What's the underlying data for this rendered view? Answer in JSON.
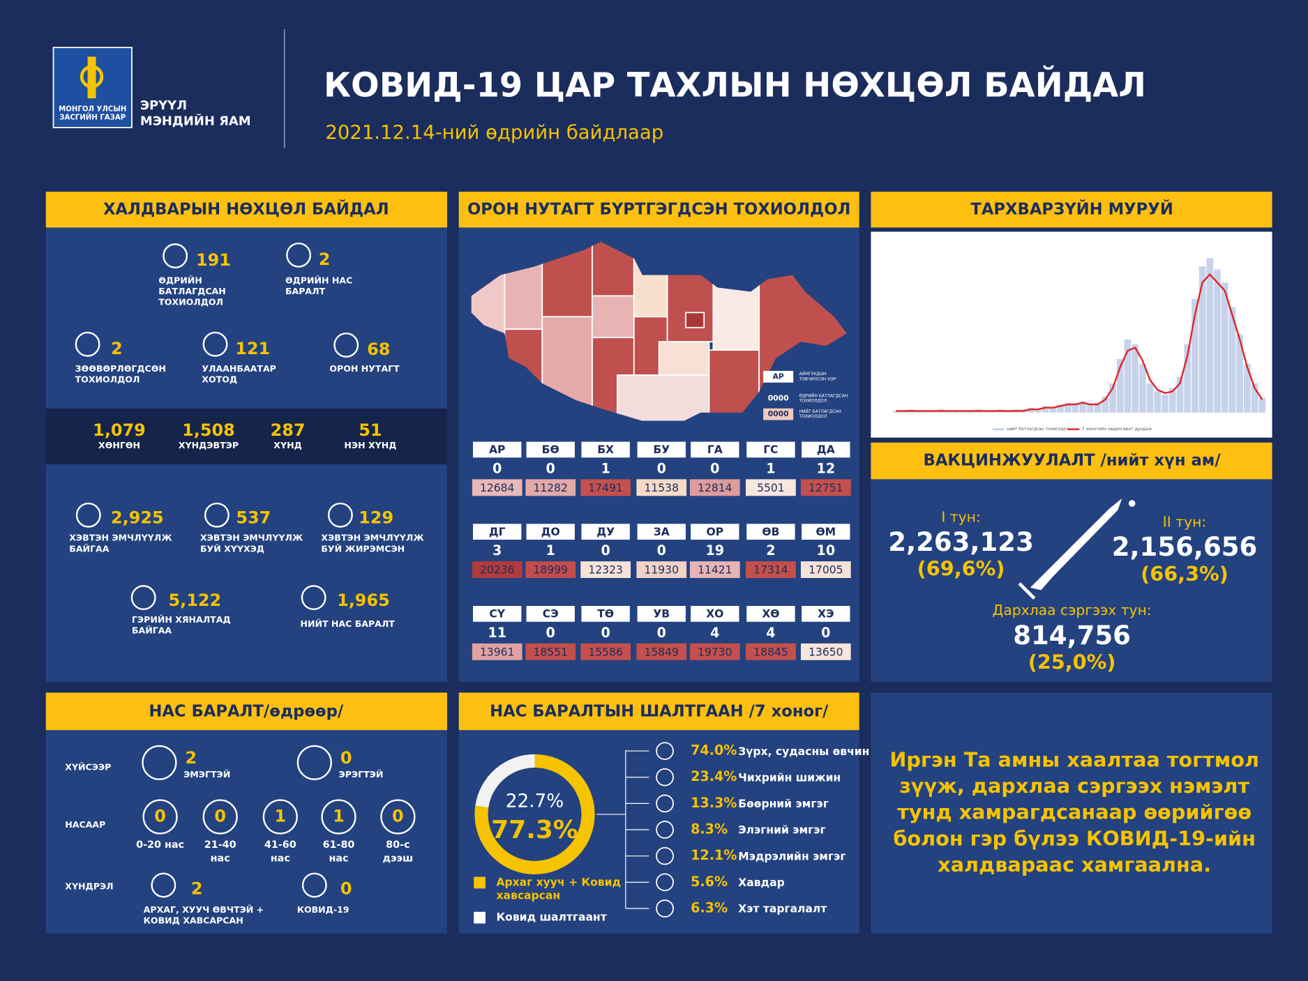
{
  "header": {
    "logo": [
      "МОНГОЛ УЛСЫН",
      "ЗАСГИЙН ГАЗАР"
    ],
    "ministry": [
      "ЭРҮҮЛ",
      "МЭНДИЙН ЯАМ"
    ],
    "title": "КОВИД-19 ЦАР ТАХЛЫН НӨХЦӨЛ БАЙДАЛ",
    "subtitle": "2021.12.14-ний өдрийн байдлаар"
  },
  "infection": {
    "title": "ХАЛДВАРЫН НӨХЦӨЛ БАЙДАЛ",
    "stats": [
      {
        "value": 191,
        "label": [
          "ӨДРИЙН",
          "БАТЛАГДСАН",
          "ТОХИОЛДОЛ"
        ]
      },
      {
        "value": 2,
        "label": [
          "ӨДРИЙН НАС",
          "БАРАЛТ"
        ]
      },
      {
        "value": 2,
        "label": [
          "ЗӨӨВӨРЛӨГДСӨН",
          "ТОХИОЛДОЛ"
        ]
      },
      {
        "value": 121,
        "label": [
          "УЛААНБААТАР",
          "ХОТОД"
        ]
      },
      {
        "value": 68,
        "label": [
          "ОРОН НУТАГТ"
        ]
      }
    ],
    "severity": [
      {
        "value": "1,079",
        "label": "ХӨНГӨН"
      },
      {
        "value": "1,508",
        "label": "ХҮНДЭВТЭР"
      },
      {
        "value": 287,
        "label": "ХҮНД"
      },
      {
        "value": 51,
        "label": "НЭН ХҮНД"
      }
    ],
    "care": [
      {
        "value": "2,925",
        "label": [
          "ХЭВТЭН ЭМЧЛҮҮЛЖ",
          "БАЙГАА"
        ]
      },
      {
        "value": 537,
        "label": [
          "ХЭВТЭН ЭМЧЛҮҮЛЖ",
          "БУЙ ХҮҮХЭД"
        ]
      },
      {
        "value": 129,
        "label": [
          "ХЭВТЭН ЭМЧЛҮҮЛЖ",
          "БУЙ ЖИРЭМСЭН"
        ]
      },
      {
        "value": "5,122",
        "label": [
          "ГЭРИЙН ХЯНАЛТАД",
          "БАЙГАА"
        ]
      },
      {
        "value": "1,965",
        "label": [
          "НИЙТ НАС БАРАЛТ"
        ]
      }
    ]
  },
  "regions": {
    "title": "ОРОН НУТАГТ БҮРТГЭГДСЭН ТОХИОЛДОЛ",
    "legend": [
      {
        "code": "АР",
        "text": [
          "АЙМГУУДЫН",
          "ТОВЧИЛСОН НЭР"
        ]
      },
      {
        "code": "0000",
        "text": [
          "ӨДРИЙН БАТЛАГДСАН",
          "ТОХИОЛДОЛ"
        ]
      },
      {
        "code": "0000",
        "text": [
          "НИЙТ БАТЛАГДСАН",
          "ТОХИОЛДОЛ"
        ]
      }
    ],
    "items": [
      {
        "code": "АР",
        "daily": 0,
        "total": 12684,
        "color": "#e9b8b8"
      },
      {
        "code": "БӨ",
        "daily": 0,
        "total": 11282,
        "color": "#e2a9a9"
      },
      {
        "code": "БХ",
        "daily": 1,
        "total": 17491,
        "color": "#c4504d"
      },
      {
        "code": "БУ",
        "daily": 0,
        "total": 11538,
        "color": "#f6dac8"
      },
      {
        "code": "ГА",
        "daily": 0,
        "total": 12814,
        "color": "#dc9c9c"
      },
      {
        "code": "ГС",
        "daily": 1,
        "total": 5501,
        "color": "#f7e6de"
      },
      {
        "code": "ДА",
        "daily": 12,
        "total": 12751,
        "color": "#c4504d"
      },
      {
        "code": "ДГ",
        "daily": 3,
        "total": 20236,
        "color": "#b23c3c"
      },
      {
        "code": "ДО",
        "daily": 1,
        "total": 18999,
        "color": "#c44c4c"
      },
      {
        "code": "ДУ",
        "daily": 0,
        "total": 12323,
        "color": "#f6e2d8"
      },
      {
        "code": "ЗА",
        "daily": 0,
        "total": 11930,
        "color": "#f1d2c8"
      },
      {
        "code": "ОР",
        "daily": 19,
        "total": 11421,
        "color": "#e7b4b4"
      },
      {
        "code": "ӨВ",
        "daily": 2,
        "total": 17314,
        "color": "#c4504d"
      },
      {
        "code": "ӨМ",
        "daily": 10,
        "total": 17005,
        "color": "#f7e2d8"
      },
      {
        "code": "СҮ",
        "daily": 11,
        "total": 13961,
        "color": "#e0a2a2"
      },
      {
        "code": "СЭ",
        "daily": 0,
        "total": 18551,
        "color": "#c4504d"
      },
      {
        "code": "ТӨ",
        "daily": 0,
        "total": 15586,
        "color": "#c4504d"
      },
      {
        "code": "УВ",
        "daily": 0,
        "total": 15849,
        "color": "#c4504d"
      },
      {
        "code": "ХО",
        "daily": 4,
        "total": 19730,
        "color": "#c4504d"
      },
      {
        "code": "ХӨ",
        "daily": 4,
        "total": 18845,
        "color": "#c4504d"
      },
      {
        "code": "ХЭ",
        "daily": 0,
        "total": 13650,
        "color": "#f7e6de"
      }
    ]
  },
  "chart_data": {
    "type": "line",
    "title": "ТАРХВАРЗҮЙН МУРУЙ",
    "ylim": [
      0,
      100
    ],
    "series": [
      {
        "name": "нийт батлагдсан тохиолдол",
        "type": "bar",
        "color": "#b9c7e6",
        "values": [
          1,
          1,
          2,
          1,
          1,
          1,
          2,
          1,
          1,
          1,
          1,
          2,
          1,
          1,
          2,
          1,
          2,
          2,
          3,
          2,
          4,
          3,
          5,
          6,
          6,
          7,
          5,
          6,
          10,
          18,
          33,
          45,
          42,
          30,
          18,
          13,
          11,
          15,
          22,
          42,
          70,
          90,
          95,
          88,
          80,
          65,
          48,
          30,
          18,
          9
        ]
      },
      {
        "name": "7 хоногийн хөдөлгөөнт дундаж",
        "color": "#e02424",
        "values": [
          1,
          1,
          1,
          1,
          1,
          1,
          1,
          1,
          1,
          1,
          1,
          1,
          1,
          1,
          1,
          1,
          1,
          1,
          2,
          2,
          3,
          3,
          4,
          5,
          5,
          6,
          5,
          5,
          8,
          15,
          28,
          38,
          40,
          32,
          20,
          14,
          12,
          13,
          18,
          35,
          60,
          80,
          85,
          80,
          75,
          60,
          45,
          28,
          15,
          8
        ]
      }
    ]
  },
  "vaccination": {
    "title": "ВАКЦИНЖУУЛАЛТ /нийт хүн ам/",
    "doses": [
      {
        "label": "I тун:",
        "value": "2,263,123",
        "percent": "(69,6%)"
      },
      {
        "label": "II тун:",
        "value": "2,156,656",
        "percent": "(66,3%)"
      },
      {
        "label": "Дархлаа сэргээх тун:",
        "value": "814,756",
        "percent": "(25,0%)"
      }
    ]
  },
  "deaths": {
    "title": "НАС БАРАЛТ/өдрөөр/",
    "rows": [
      "ХҮЙСЭЭР",
      "НАСААР",
      "ХҮНДРЭЛ"
    ],
    "gender": [
      {
        "value": 2,
        "label": "ЭМЭГТЭЙ"
      },
      {
        "value": 0,
        "label": "ЭРЭГТЭЙ"
      }
    ],
    "age": [
      {
        "value": 0,
        "label": [
          "0-20 нас"
        ]
      },
      {
        "value": 0,
        "label": [
          "21-40",
          "нас"
        ]
      },
      {
        "value": 1,
        "label": [
          "41-60",
          "нас"
        ]
      },
      {
        "value": 1,
        "label": [
          "61-80",
          "нас"
        ]
      },
      {
        "value": 0,
        "label": [
          "80-с",
          "дээш"
        ]
      }
    ],
    "complication": [
      {
        "value": 2,
        "label": [
          "АРХАГ, ХУУЧ ӨВЧТЭЙ +",
          "КОВИД ХАВСАРСАН"
        ]
      },
      {
        "value": 0,
        "label": [
          "КОВИД-19"
        ]
      }
    ]
  },
  "causes": {
    "title": "НАС БАРАЛТЫН ШАЛТГААН /7 хоног/",
    "donut": {
      "values": [
        22.7,
        77.3
      ],
      "value_labels": [
        "22.7%",
        "77.3%"
      ],
      "colors": [
        "#f2f2f2",
        "#f5c300"
      ]
    },
    "legend": [
      {
        "label": [
          "Архаг хууч + Ковид",
          "хавсарсан"
        ],
        "color": "#f5c300"
      },
      {
        "label": [
          "Ковид шалтгаант"
        ],
        "color": "#ffffff"
      }
    ],
    "items": [
      {
        "percent": "74.0%",
        "label": "Зүрх, судасны өвчин"
      },
      {
        "percent": "23.4%",
        "label": "Чихрийн шижин"
      },
      {
        "percent": "13.3%",
        "label": "Бөөрний эмгэг"
      },
      {
        "percent": "8.3%",
        "label": "Элэгний эмгэг"
      },
      {
        "percent": "12.1%",
        "label": "Мэдрэлийн эмгэг"
      },
      {
        "percent": "5.6%",
        "label": "Хавдар"
      },
      {
        "percent": "6.3%",
        "label": "Хэт таргалалт"
      }
    ]
  },
  "message": [
    "Иргэн Та амны хаалтаа тогтмол",
    "зүүж, дархлаа сэргээх нэмэлт",
    "тунд хамрагдсанаар өөрийгөө",
    "болон гэр бүлээ КОВИД-19-ийн",
    "халдвараас хамгаална."
  ]
}
